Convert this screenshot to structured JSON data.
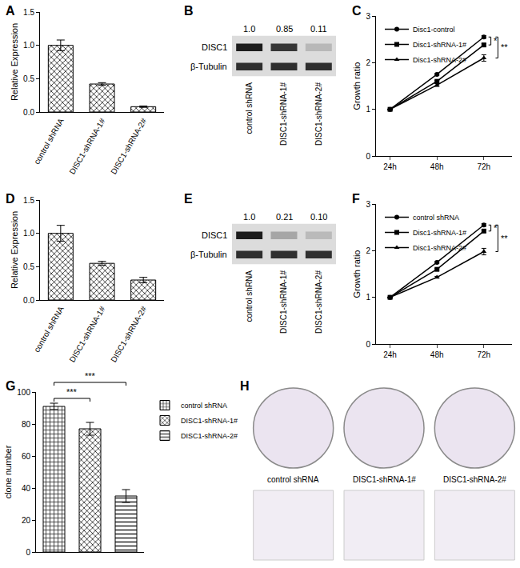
{
  "chart_data": [
    {
      "panel": "A",
      "type": "bar",
      "categories": [
        "control shRNA",
        "DISC1-shRNA-1#",
        "DISC1-shRNA-2#"
      ],
      "values": [
        1.0,
        0.42,
        0.08
      ],
      "errors": [
        0.08,
        0.02,
        0.01
      ],
      "ylabel": "Relative Expression",
      "color": "#8c8c8c",
      "ylim": [
        0,
        1.5
      ],
      "yticks": [
        {
          "value": 0,
          "label": "0.0"
        },
        0.5,
        {
          "value": 1,
          "label": "1.0"
        },
        1.5
      ],
      "grid": false
    },
    {
      "panel": "B",
      "type": "blot",
      "rows": [
        "DISC1",
        "β-Tubulin"
      ],
      "categories": [
        "control shRNA",
        "DISC1-shRNA-1#",
        "DISC1-shRNA-2#"
      ],
      "values": [
        1.0,
        0.85,
        0.11
      ],
      "value_labels": [
        "1.0",
        "0.85",
        "0.11"
      ],
      "data_labels": true
    },
    {
      "panel": "C",
      "type": "line",
      "categories": [
        "24h",
        "48h",
        "72h"
      ],
      "series": [
        {
          "name": "Disc1-control",
          "color": "#000000",
          "marker": "circle",
          "line_style": "solid",
          "values": [
            1,
            1.75,
            2.55
          ],
          "errors": [
            0,
            0.02,
            0.03
          ]
        },
        {
          "name": "Disc1-shRNA-1#",
          "color": "#000000",
          "marker": "square",
          "line_style": "solid",
          "values": [
            1,
            1.6,
            2.38
          ],
          "errors": [
            0,
            0.02,
            0.03
          ]
        },
        {
          "name": "Disc1-shRNA-2#",
          "color": "#000000",
          "marker": "triangle-up",
          "line_style": "solid",
          "values": [
            1,
            1.52,
            2.1
          ],
          "errors": [
            0,
            0.03,
            0.07
          ]
        }
      ],
      "ylabel": "Growth ratio",
      "ylim": [
        0,
        3
      ],
      "yticks": [
        0,
        1,
        2,
        3
      ],
      "legend": "upper left",
      "grid": false,
      "annotations": [
        "*",
        "**"
      ]
    },
    {
      "panel": "D",
      "type": "bar",
      "categories": [
        "control shRNA",
        "DISC1-shRNA-1#",
        "DISC1-shRNA-2#"
      ],
      "values": [
        1.0,
        0.55,
        0.3
      ],
      "errors": [
        0.12,
        0.03,
        0.04
      ],
      "ylabel": "Relative Expression",
      "color": "#8c8c8c",
      "ylim": [
        0,
        1.5
      ],
      "yticks": [
        {
          "value": 0,
          "label": "0.0"
        },
        0.5,
        {
          "value": 1,
          "label": "1.0"
        },
        1.5
      ],
      "grid": false
    },
    {
      "panel": "E",
      "type": "blot",
      "rows": [
        "DISC1",
        "β-Tubulin"
      ],
      "categories": [
        "control shRNA",
        "DISC1-shRNA-1#",
        "DISC1-shRNA-2#"
      ],
      "values": [
        1.0,
        0.21,
        0.1
      ],
      "value_labels": [
        "1.0",
        "0.21",
        "0.10"
      ],
      "data_labels": true
    },
    {
      "panel": "F",
      "type": "line",
      "categories": [
        "24h",
        "48h",
        "72h"
      ],
      "series": [
        {
          "name": "control shRNA",
          "color": "#000000",
          "marker": "circle",
          "line_style": "solid",
          "values": [
            1,
            1.75,
            2.55
          ],
          "errors": [
            0,
            0.02,
            0.03
          ]
        },
        {
          "name": "Disc1-shRNA-1#",
          "color": "#000000",
          "marker": "square",
          "line_style": "solid",
          "values": [
            1,
            1.6,
            2.42
          ],
          "errors": [
            0,
            0.02,
            0.03
          ]
        },
        {
          "name": "Disc1-shRNA-2#",
          "color": "#000000",
          "marker": "triangle-up",
          "line_style": "solid",
          "values": [
            1,
            1.43,
            1.98
          ],
          "errors": [
            0,
            0.02,
            0.07
          ]
        }
      ],
      "ylabel": "Growth ratio",
      "ylim": [
        0,
        3
      ],
      "yticks": [
        0,
        1,
        2,
        3
      ],
      "legend": "upper left",
      "grid": false,
      "annotations": [
        "*",
        "**"
      ]
    },
    {
      "panel": "G",
      "type": "bar",
      "categories": [
        "control shRNA",
        "DISC1-shRNA-1#",
        "DISC1-shRNA-2#"
      ],
      "values": [
        91,
        77,
        35
      ],
      "errors": [
        2,
        4,
        4
      ],
      "ylabel": "clone number",
      "color": "#9a9a9a",
      "ylim": [
        0,
        100
      ],
      "yticks": [
        0,
        20,
        40,
        60,
        80,
        100
      ],
      "legend": "upper right",
      "tick_labels": "y",
      "grid": false,
      "annotations": [
        "***",
        "***"
      ]
    },
    {
      "panel": "H",
      "type": "image",
      "categories": [
        "control shRNA",
        "DISC1-shRNA-1#",
        "DISC1-shRNA-2#"
      ]
    }
  ]
}
